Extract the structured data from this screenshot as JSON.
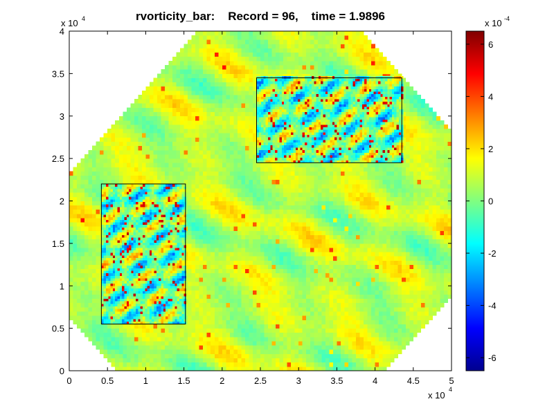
{
  "chart_data": {
    "type": "heatmap",
    "title": "rvorticity_bar:    Record = 96,    time = 1.9896",
    "xlabel": "",
    "ylabel": "",
    "xlim": [
      0,
      50000
    ],
    "ylim": [
      0,
      40000
    ],
    "x_ticks": [
      0,
      0.5,
      1,
      1.5,
      2,
      2.5,
      3,
      3.5,
      4,
      4.5,
      5
    ],
    "x_tick_labels": [
      "0",
      "0.5",
      "1",
      "1.5",
      "2",
      "2.5",
      "3",
      "3.5",
      "4",
      "4.5",
      "5"
    ],
    "x_multiplier": {
      "base": "x 10",
      "exponent": "4"
    },
    "y_ticks": [
      0,
      0.5,
      1,
      1.5,
      2,
      2.5,
      3,
      3.5,
      4
    ],
    "y_tick_labels": [
      "0",
      "0.5",
      "1",
      "1.5",
      "2",
      "2.5",
      "3",
      "3.5",
      "4"
    ],
    "y_multiplier": {
      "base": "x 10",
      "exponent": "4"
    },
    "colorbar": {
      "colormap": "jet",
      "range": [
        -0.00065,
        0.00065
      ],
      "ticks": [
        -6,
        -4,
        -2,
        0,
        2,
        4,
        6
      ],
      "tick_labels": [
        "-6",
        "-4",
        "-2",
        "0",
        "2",
        "4",
        "6"
      ],
      "multiplier": {
        "base": "x 10",
        "exponent": "-4"
      }
    },
    "nested_domains": [
      {
        "x_range": [
          4200,
          15200
        ],
        "y_range": [
          5500,
          22000
        ]
      },
      {
        "x_range": [
          24500,
          43500
        ],
        "y_range": [
          24500,
          34500
        ]
      }
    ],
    "grid": false,
    "legend": "none"
  }
}
